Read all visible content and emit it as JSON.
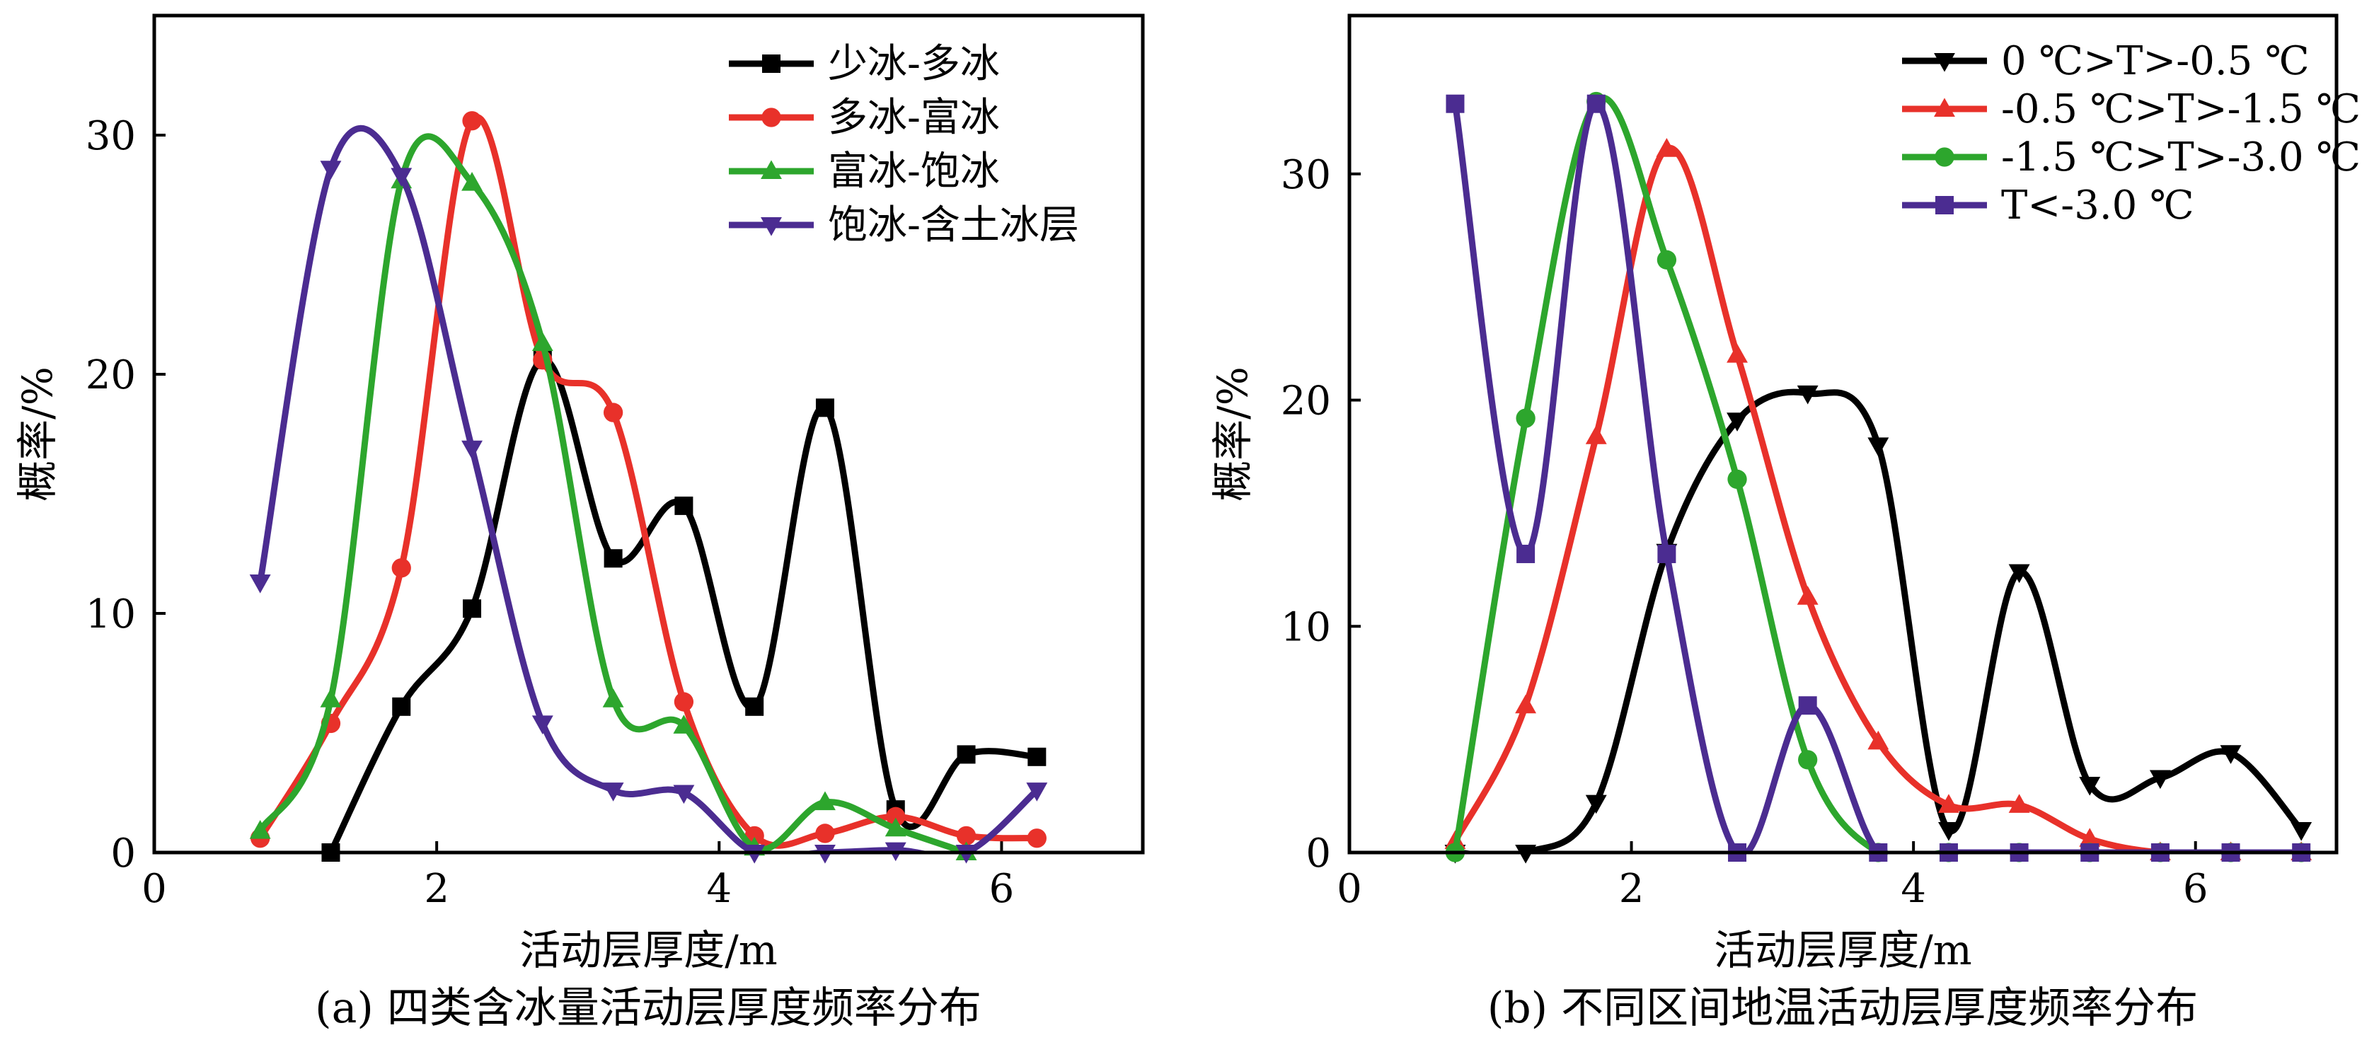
{
  "chart_data": [
    {
      "type": "line",
      "caption": "(a) 四类含冰量活动层厚度频率分布",
      "xlabel": "活动层厚度/m",
      "ylabel": "概率/%",
      "xlim": [
        0,
        7
      ],
      "ylim": [
        0,
        35
      ],
      "xticks": [
        0,
        2,
        4,
        6
      ],
      "yticks": [
        0,
        10,
        20,
        30
      ],
      "grid": false,
      "legend": "top-right",
      "series": [
        {
          "name": "少冰-多冰",
          "color": "#000000",
          "marker": "square",
          "x": [
            1.25,
            1.75,
            2.25,
            2.75,
            3.25,
            3.75,
            4.25,
            4.75,
            5.25,
            5.75,
            6.25
          ],
          "y": [
            0,
            6.1,
            10.2,
            20.6,
            12.3,
            14.5,
            6.1,
            18.6,
            1.8,
            4.1,
            4.0
          ]
        },
        {
          "name": "多冰-富冰",
          "color": "#e8312a",
          "marker": "circle",
          "x": [
            0.75,
            1.25,
            1.75,
            2.25,
            2.75,
            3.25,
            3.75,
            4.25,
            4.75,
            5.25,
            5.75,
            6.25
          ],
          "y": [
            0.6,
            5.4,
            11.9,
            30.6,
            20.6,
            18.4,
            6.3,
            0.7,
            0.8,
            1.5,
            0.7,
            0.6
          ]
        },
        {
          "name": "富冰-饱冰",
          "color": "#2da62d",
          "marker": "triangle-up",
          "x": [
            0.75,
            1.25,
            1.75,
            2.25,
            2.75,
            3.25,
            3.75,
            4.25,
            4.75,
            5.25,
            5.75
          ],
          "y": [
            0.9,
            6.4,
            28.1,
            28.0,
            21.3,
            6.4,
            5.3,
            0.2,
            2.1,
            1.0,
            0
          ]
        },
        {
          "name": "饱冰-含土冰层",
          "color": "#4b2c91",
          "marker": "triangle-down",
          "x": [
            0.75,
            1.25,
            1.75,
            2.25,
            2.75,
            3.25,
            3.75,
            4.25,
            4.75,
            5.25,
            5.75,
            6.25
          ],
          "y": [
            11.3,
            28.6,
            28.3,
            16.9,
            5.4,
            2.6,
            2.5,
            0,
            0,
            0.1,
            0,
            2.6
          ]
        }
      ]
    },
    {
      "type": "line",
      "caption": "(b) 不同区间地温活动层厚度频率分布",
      "xlabel": "活动层厚度/m",
      "ylabel": "概率/%",
      "xlim": [
        0,
        7
      ],
      "ylim": [
        0,
        37
      ],
      "xticks": [
        0,
        2,
        4,
        6
      ],
      "yticks": [
        0,
        10,
        20,
        30
      ],
      "grid": false,
      "legend": "top-right",
      "series": [
        {
          "name": "0 ℃>T>-0.5 ℃",
          "color": "#000000",
          "marker": "triangle-down",
          "x": [
            0.75,
            1.25,
            1.75,
            2.25,
            2.75,
            3.25,
            3.75,
            4.25,
            4.75,
            5.25,
            5.75,
            6.25,
            6.75
          ],
          "y": [
            0,
            0,
            2.2,
            13.3,
            19.1,
            20.3,
            18.0,
            1.0,
            12.4,
            3.0,
            3.3,
            4.4,
            1.0
          ]
        },
        {
          "name": "-0.5 ℃>T>-1.5 ℃",
          "color": "#e8312a",
          "marker": "triangle-up",
          "x": [
            0.75,
            1.25,
            1.75,
            2.25,
            2.75,
            3.25,
            3.75,
            4.25,
            4.75,
            5.25,
            5.75,
            6.25,
            6.75
          ],
          "y": [
            0.5,
            6.5,
            18.4,
            31.1,
            22.0,
            11.3,
            4.9,
            2.1,
            2.1,
            0.6,
            0,
            0,
            0
          ]
        },
        {
          "name": "-1.5 ℃>T>-3.0 ℃",
          "color": "#2da62d",
          "marker": "circle",
          "x": [
            0.75,
            1.25,
            1.75,
            2.25,
            2.75,
            3.25,
            3.75,
            4.25,
            4.75,
            5.25,
            5.75,
            6.25,
            6.75
          ],
          "y": [
            0,
            19.2,
            33.2,
            26.2,
            16.5,
            4.1,
            0,
            0,
            0,
            0,
            0,
            0,
            0
          ]
        },
        {
          "name": "T<-3.0 ℃",
          "color": "#4b2c91",
          "marker": "square",
          "x": [
            0.75,
            1.25,
            1.75,
            2.25,
            2.75,
            3.25,
            3.75,
            4.25,
            4.75,
            5.25,
            5.75,
            6.25,
            6.75
          ],
          "y": [
            33.1,
            13.2,
            33.1,
            13.2,
            0,
            6.5,
            0,
            0,
            0,
            0,
            0,
            0,
            0
          ]
        }
      ]
    }
  ]
}
